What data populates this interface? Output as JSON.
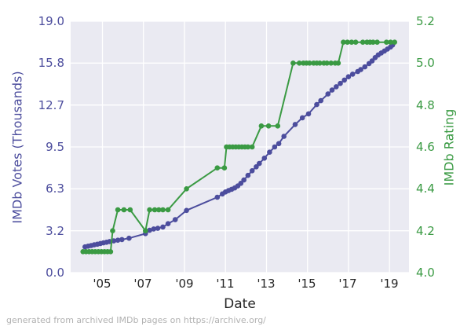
{
  "footer": {
    "credit": "generated from archived IMDb pages on https://archive.org/"
  },
  "colors": {
    "votes_series": "#4c4d9d",
    "rating_series": "#3a9a43",
    "plot_background": "#eaeaf2",
    "gridline": "#ffffff",
    "x_tick_text": "#262626",
    "footer_text": "#b2b2b2"
  },
  "chart_data": {
    "type": "line",
    "title": "",
    "xlabel": "Date",
    "legend": "none",
    "grid": "on",
    "x_axis": {
      "tick_labels": [
        "'05",
        "'07",
        "'09",
        "'11",
        "'13",
        "'15",
        "'17",
        "'19"
      ],
      "tick_years": [
        2005,
        2007,
        2009,
        2011,
        2013,
        2015,
        2017,
        2019
      ],
      "lim": [
        2003.45,
        2019.95
      ]
    },
    "left_axis": {
      "label": "IMDb Votes (Thousands)",
      "tick_labels": [
        "19.0",
        "15.8",
        "12.7",
        "9.5",
        "6.3",
        "3.2",
        "0.0"
      ],
      "tick_values": [
        19.0,
        15.8333,
        12.6667,
        9.5,
        6.3333,
        3.1667,
        0.0
      ],
      "lim": [
        0,
        19
      ]
    },
    "right_axis": {
      "label": "IMDb Rating",
      "tick_labels": [
        "5.2",
        "5.0",
        "4.8",
        "4.6",
        "4.4",
        "4.2",
        "4.0"
      ],
      "tick_values": [
        5.2,
        5.0,
        4.8,
        4.6,
        4.4,
        4.2,
        4.0
      ],
      "lim": [
        4.0,
        5.2
      ]
    },
    "series": [
      {
        "name": "IMDb Votes (Thousands)",
        "axis": "left",
        "color": "#4c4d9d",
        "points": [
          [
            2004.15,
            1.95
          ],
          [
            2004.3,
            2.0
          ],
          [
            2004.45,
            2.05
          ],
          [
            2004.6,
            2.1
          ],
          [
            2004.75,
            2.15
          ],
          [
            2004.9,
            2.2
          ],
          [
            2005.05,
            2.25
          ],
          [
            2005.2,
            2.3
          ],
          [
            2005.35,
            2.35
          ],
          [
            2005.55,
            2.4
          ],
          [
            2005.75,
            2.45
          ],
          [
            2005.95,
            2.5
          ],
          [
            2006.3,
            2.6
          ],
          [
            2007.1,
            2.95
          ],
          [
            2007.3,
            3.2
          ],
          [
            2007.5,
            3.3
          ],
          [
            2007.7,
            3.35
          ],
          [
            2007.95,
            3.45
          ],
          [
            2008.2,
            3.7
          ],
          [
            2008.55,
            4.0
          ],
          [
            2009.1,
            4.7
          ],
          [
            2010.6,
            5.7
          ],
          [
            2010.85,
            5.95
          ],
          [
            2011.0,
            6.1
          ],
          [
            2011.15,
            6.2
          ],
          [
            2011.3,
            6.3
          ],
          [
            2011.45,
            6.4
          ],
          [
            2011.6,
            6.55
          ],
          [
            2011.75,
            6.75
          ],
          [
            2011.9,
            7.0
          ],
          [
            2012.1,
            7.35
          ],
          [
            2012.3,
            7.7
          ],
          [
            2012.5,
            8.0
          ],
          [
            2012.65,
            8.25
          ],
          [
            2012.9,
            8.65
          ],
          [
            2013.15,
            9.1
          ],
          [
            2013.4,
            9.5
          ],
          [
            2013.6,
            9.75
          ],
          [
            2013.85,
            10.3
          ],
          [
            2014.4,
            11.2
          ],
          [
            2014.75,
            11.7
          ],
          [
            2015.05,
            12.0
          ],
          [
            2015.45,
            12.7
          ],
          [
            2015.65,
            13.0
          ],
          [
            2016.0,
            13.5
          ],
          [
            2016.2,
            13.8
          ],
          [
            2016.4,
            14.05
          ],
          [
            2016.6,
            14.3
          ],
          [
            2016.8,
            14.55
          ],
          [
            2017.0,
            14.8
          ],
          [
            2017.2,
            15.0
          ],
          [
            2017.45,
            15.2
          ],
          [
            2017.6,
            15.35
          ],
          [
            2017.8,
            15.55
          ],
          [
            2018.0,
            15.8
          ],
          [
            2018.15,
            16.0
          ],
          [
            2018.3,
            16.25
          ],
          [
            2018.45,
            16.45
          ],
          [
            2018.6,
            16.6
          ],
          [
            2018.75,
            16.75
          ],
          [
            2018.9,
            16.9
          ],
          [
            2019.05,
            17.05
          ],
          [
            2019.15,
            17.2
          ]
        ]
      },
      {
        "name": "IMDb Rating",
        "axis": "right",
        "color": "#3a9a43",
        "points": [
          [
            2004.05,
            4.1
          ],
          [
            2004.2,
            4.1
          ],
          [
            2004.35,
            4.1
          ],
          [
            2004.5,
            4.1
          ],
          [
            2004.65,
            4.1
          ],
          [
            2004.8,
            4.1
          ],
          [
            2004.95,
            4.1
          ],
          [
            2005.1,
            4.1
          ],
          [
            2005.25,
            4.1
          ],
          [
            2005.4,
            4.1
          ],
          [
            2005.5,
            4.2
          ],
          [
            2005.75,
            4.3
          ],
          [
            2006.05,
            4.3
          ],
          [
            2006.35,
            4.3
          ],
          [
            2007.1,
            4.2
          ],
          [
            2007.3,
            4.3
          ],
          [
            2007.55,
            4.3
          ],
          [
            2007.75,
            4.3
          ],
          [
            2007.95,
            4.3
          ],
          [
            2008.2,
            4.3
          ],
          [
            2009.1,
            4.4
          ],
          [
            2010.6,
            4.5
          ],
          [
            2010.95,
            4.5
          ],
          [
            2011.05,
            4.6
          ],
          [
            2011.2,
            4.6
          ],
          [
            2011.35,
            4.6
          ],
          [
            2011.5,
            4.6
          ],
          [
            2011.65,
            4.6
          ],
          [
            2011.8,
            4.6
          ],
          [
            2011.95,
            4.6
          ],
          [
            2012.1,
            4.6
          ],
          [
            2012.3,
            4.6
          ],
          [
            2012.75,
            4.7
          ],
          [
            2013.1,
            4.7
          ],
          [
            2013.55,
            4.7
          ],
          [
            2014.3,
            5.0
          ],
          [
            2014.6,
            5.0
          ],
          [
            2014.8,
            5.0
          ],
          [
            2014.95,
            5.0
          ],
          [
            2015.1,
            5.0
          ],
          [
            2015.3,
            5.0
          ],
          [
            2015.45,
            5.0
          ],
          [
            2015.6,
            5.0
          ],
          [
            2015.8,
            5.0
          ],
          [
            2015.95,
            5.0
          ],
          [
            2016.15,
            5.0
          ],
          [
            2016.35,
            5.0
          ],
          [
            2016.5,
            5.0
          ],
          [
            2016.75,
            5.1
          ],
          [
            2016.95,
            5.1
          ],
          [
            2017.15,
            5.1
          ],
          [
            2017.35,
            5.1
          ],
          [
            2017.7,
            5.1
          ],
          [
            2017.9,
            5.1
          ],
          [
            2018.05,
            5.1
          ],
          [
            2018.2,
            5.1
          ],
          [
            2018.4,
            5.1
          ],
          [
            2018.85,
            5.1
          ],
          [
            2019.05,
            5.1
          ],
          [
            2019.25,
            5.1
          ]
        ]
      }
    ]
  }
}
